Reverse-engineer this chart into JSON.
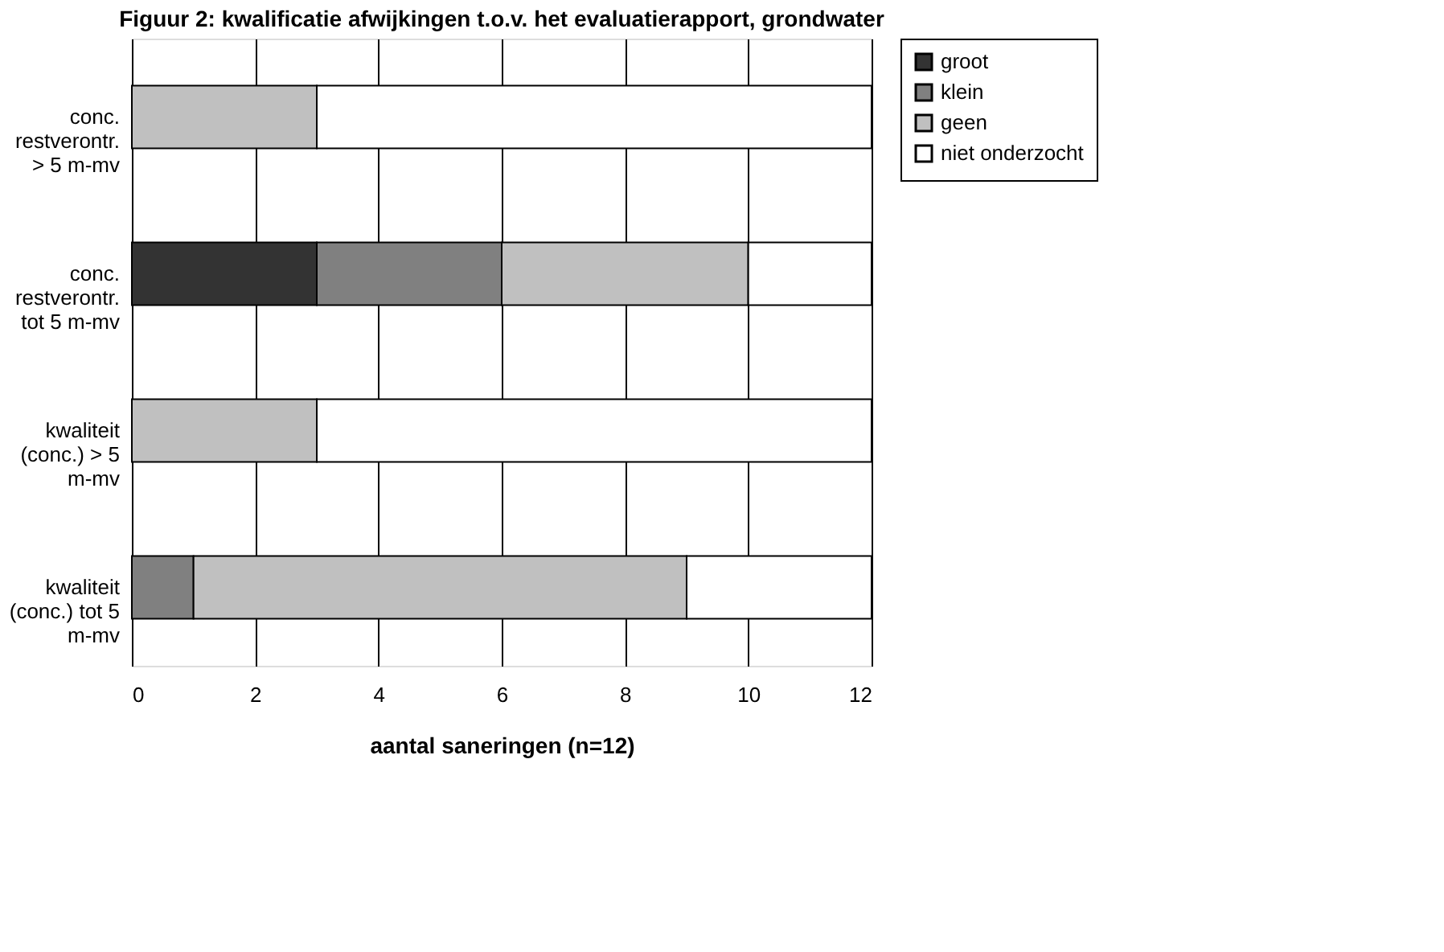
{
  "chart_data": {
    "type": "bar",
    "orientation": "horizontal",
    "stacked": true,
    "title": "Figuur 2: kwalificatie afwijkingen t.o.v. het evaluatierapport, grondwater",
    "xlabel": "aantal saneringen (n=12)",
    "categories": [
      "conc. restverontr. > 5 m-mv",
      "conc. restverontr. tot 5 m-mv",
      "kwaliteit (conc.) > 5 m-mv",
      "kwaliteit (conc.) tot 5 m-mv"
    ],
    "series": [
      {
        "name": "groot",
        "color": "#333333",
        "values": [
          0,
          3,
          0,
          0
        ]
      },
      {
        "name": "klein",
        "color": "#808080",
        "values": [
          0,
          3,
          0,
          1
        ]
      },
      {
        "name": "geen",
        "color": "#c0c0c0",
        "values": [
          3,
          4,
          3,
          8
        ]
      },
      {
        "name": "niet onderzocht",
        "color": "#ffffff",
        "values": [
          9,
          2,
          9,
          3
        ]
      }
    ],
    "xlim": [
      0,
      12
    ],
    "xticks": [
      0,
      2,
      4,
      6,
      8,
      10,
      12
    ],
    "grid": "x",
    "legend": "right"
  }
}
